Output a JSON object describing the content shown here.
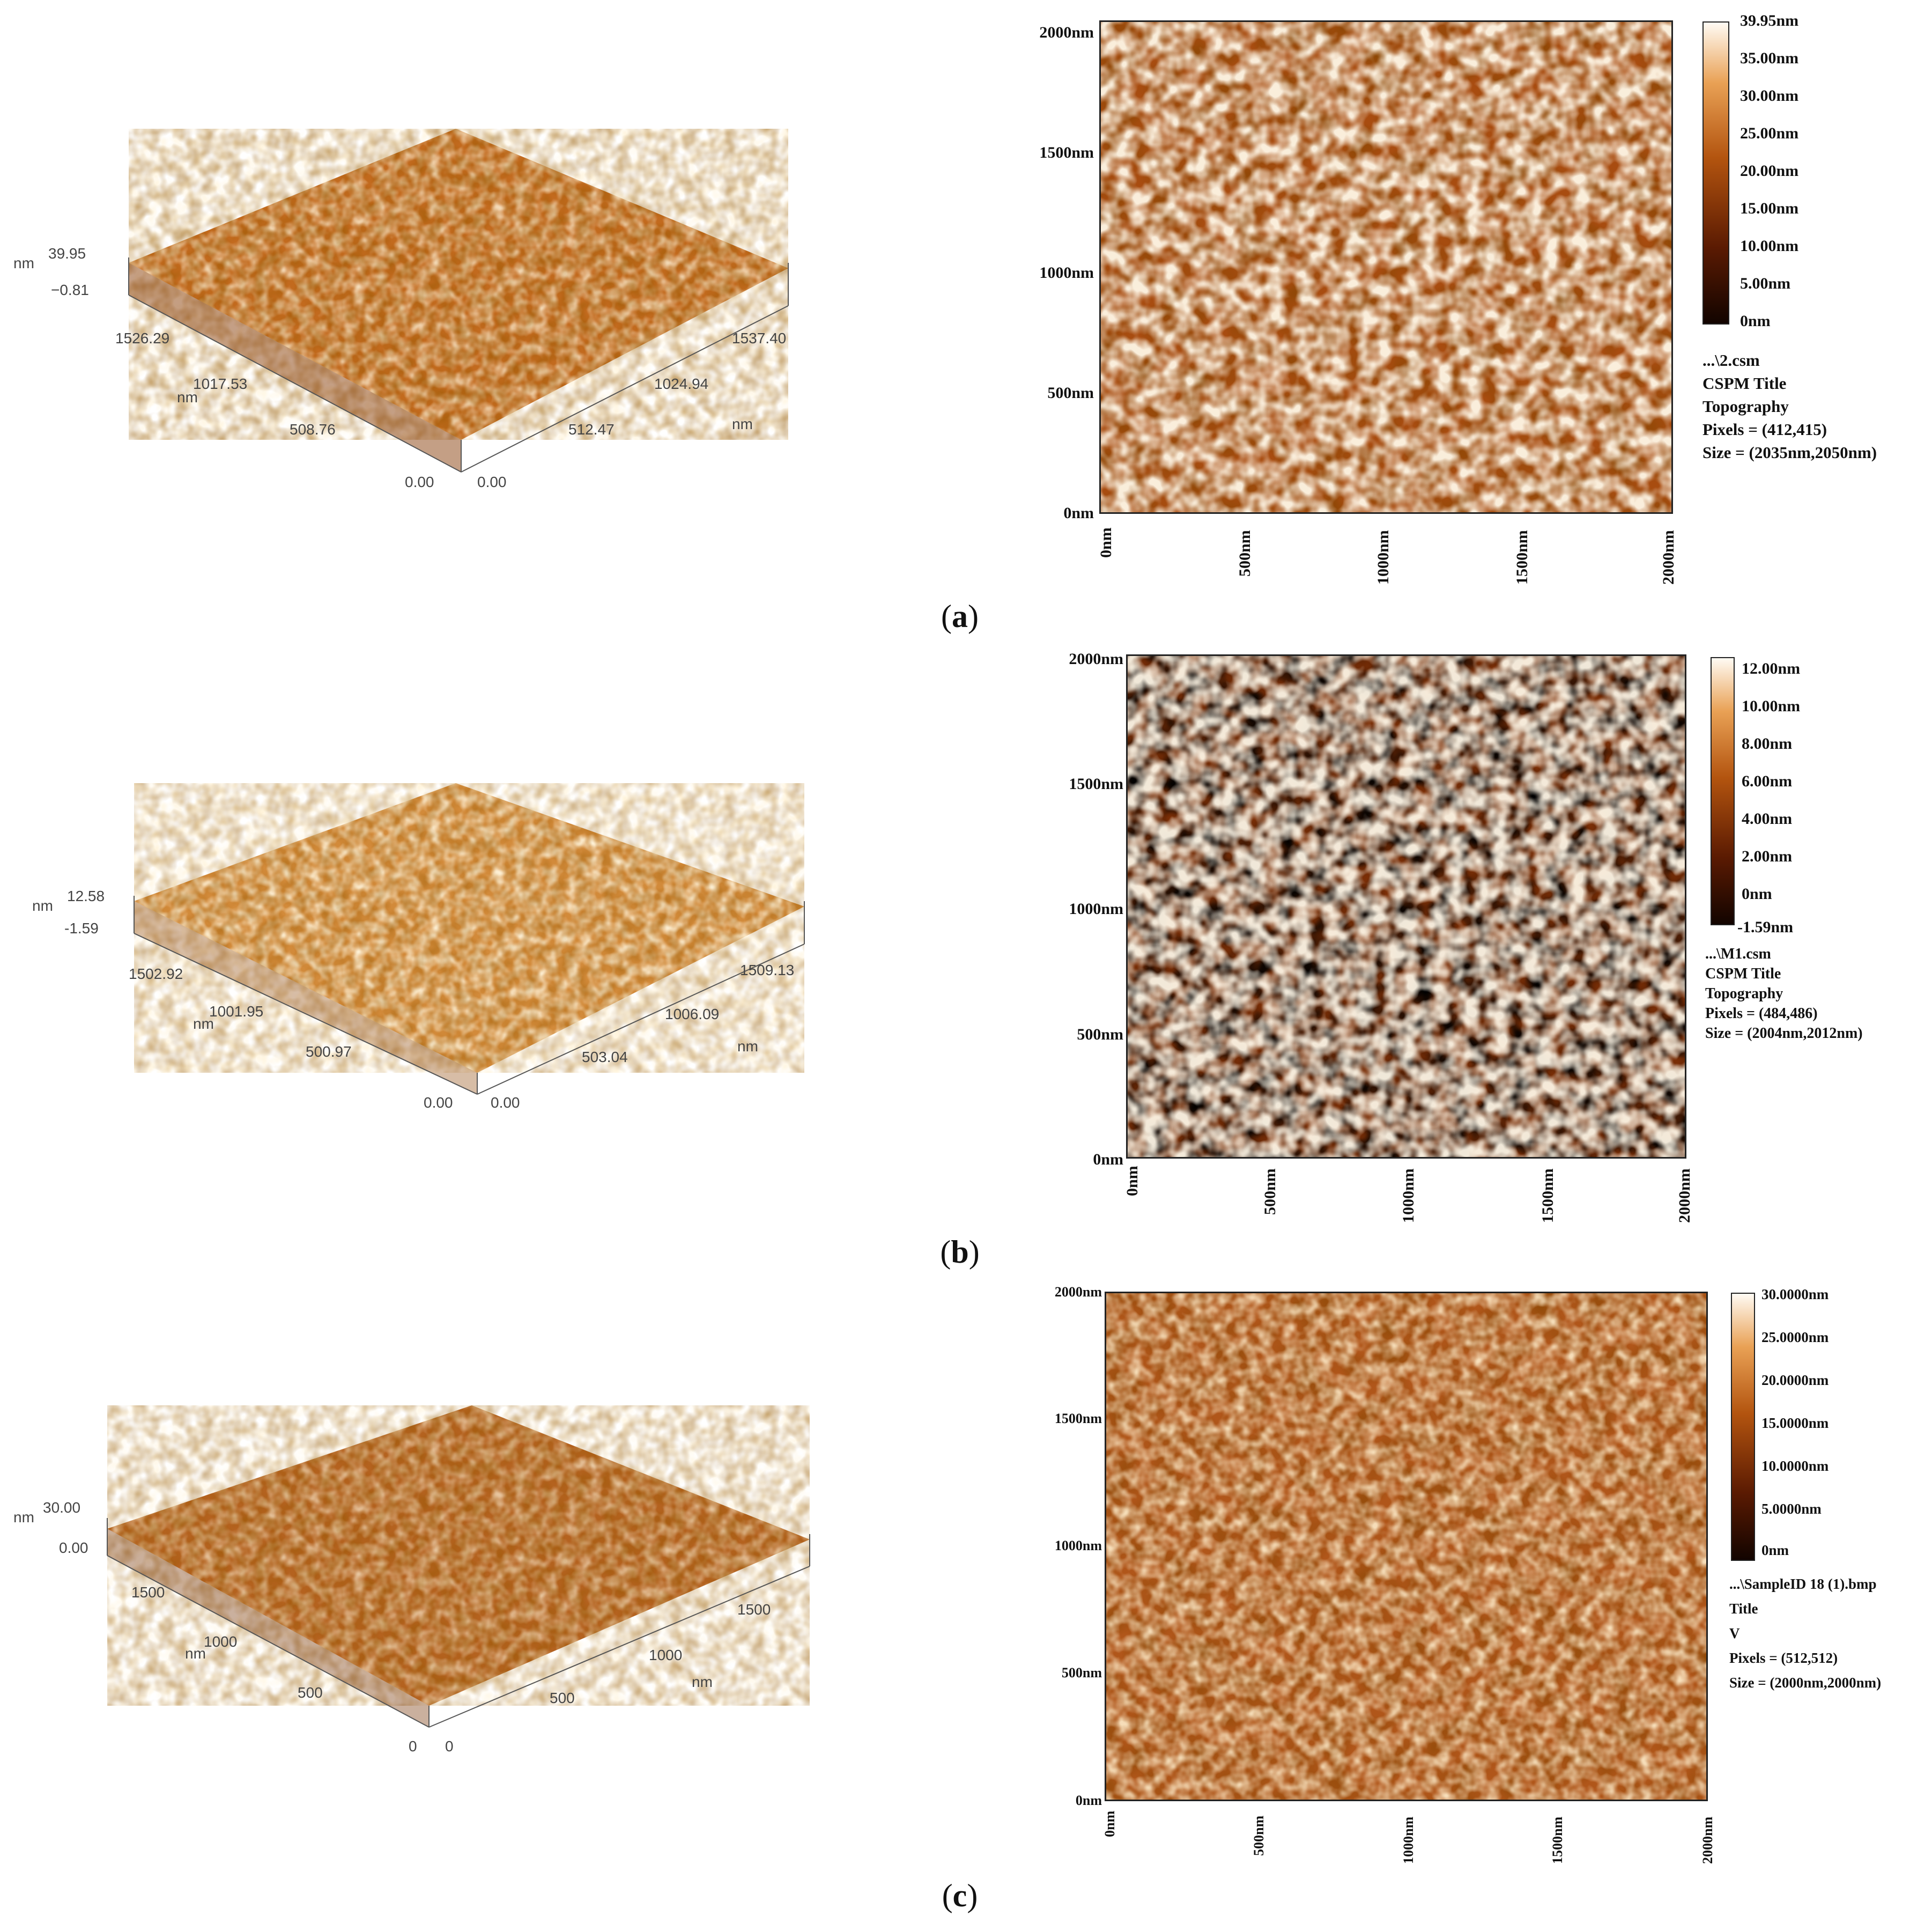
{
  "panels": [
    {
      "id": "a",
      "caption": "a",
      "surface3d": {
        "z_max": "39.95",
        "z_min": "−0.81",
        "z_unit": "nm",
        "left_axis_ticks": [
          "1526.29",
          "1017.53",
          "508.76",
          "0.00"
        ],
        "left_axis_unit": "nm",
        "right_axis_ticks": [
          "1537.40",
          "1024.94",
          "512.47",
          "0.00"
        ],
        "right_axis_unit": "nm"
      },
      "map": {
        "y_ticks": [
          "2000nm",
          "1500nm",
          "1000nm",
          "500nm",
          "0nm"
        ],
        "x_ticks": [
          "0nm",
          "500nm",
          "1000nm",
          "1500nm",
          "2000nm"
        ],
        "colorbar_ticks": [
          "39.95nm",
          "35.00nm",
          "30.00nm",
          "25.00nm",
          "20.00nm",
          "15.00nm",
          "10.00nm",
          "5.00nm",
          "0nm"
        ],
        "info": [
          "...\\2.csm",
          "CSPM Title",
          "Topography",
          "Pixels = (412,415)",
          "Size = (2035nm,2050nm)"
        ]
      }
    },
    {
      "id": "b",
      "caption": "b",
      "surface3d": {
        "z_max": "12.58",
        "z_min": "-1.59",
        "z_unit": "nm",
        "left_axis_ticks": [
          "1502.92",
          "1001.95",
          "500.97",
          "0.00"
        ],
        "left_axis_unit": "nm",
        "right_axis_ticks": [
          "1509.13",
          "1006.09",
          "503.04",
          "0.00"
        ],
        "right_axis_unit": "nm"
      },
      "map": {
        "y_ticks": [
          "2000nm",
          "1500nm",
          "1000nm",
          "500nm",
          "0nm"
        ],
        "x_ticks": [
          "0nm",
          "500nm",
          "1000nm",
          "1500nm",
          "2000nm"
        ],
        "colorbar_ticks": [
          "12.00nm",
          "10.00nm",
          "8.00nm",
          "6.00nm",
          "4.00nm",
          "2.00nm",
          "0nm",
          "-1.59nm"
        ],
        "info": [
          "...\\M1.csm",
          "CSPM Title",
          "Topography",
          "Pixels = (484,486)",
          "Size = (2004nm,2012nm)"
        ]
      }
    },
    {
      "id": "c",
      "caption": "c",
      "surface3d": {
        "z_max": "30.00",
        "z_min": "0.00",
        "z_unit": "nm",
        "left_axis_ticks": [
          "1500",
          "1000",
          "500",
          "0"
        ],
        "left_axis_unit": "nm",
        "right_axis_ticks": [
          "1500",
          "1000",
          "500",
          "0"
        ],
        "right_axis_unit": "nm"
      },
      "map": {
        "y_ticks": [
          "2000nm",
          "1500nm",
          "1000nm",
          "500nm",
          "0nm"
        ],
        "x_ticks": [
          "0nm",
          "500nm",
          "1000nm",
          "1500nm",
          "2000nm"
        ],
        "colorbar_ticks": [
          "30.0000nm",
          "25.0000nm",
          "20.0000nm",
          "15.0000nm",
          "10.0000nm",
          "5.0000nm",
          "0nm"
        ],
        "info": [
          "...\\SampleID 18 (1).bmp",
          "Title",
          "V",
          "Pixels = (512,512)",
          "Size = (2000nm,2000nm)"
        ]
      }
    }
  ],
  "colors": {
    "afm_dark": "#3a0e00",
    "afm_mid": "#b85a12",
    "afm_light": "#fff2df"
  }
}
